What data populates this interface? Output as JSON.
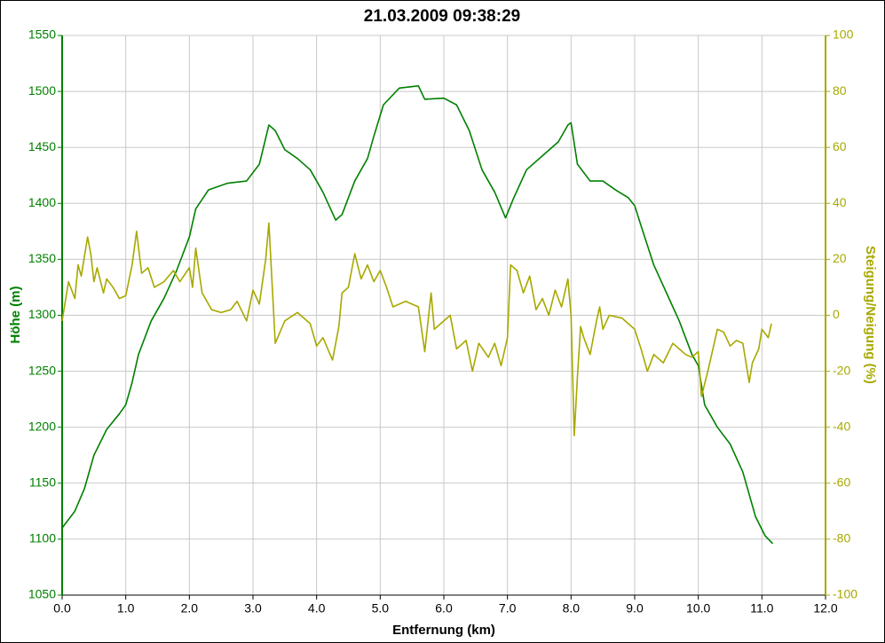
{
  "chart_data": {
    "type": "line",
    "title": "21.03.2009 09:38:29",
    "xlabel": "Entfernung (km)",
    "ylabel": "Höhe (m)",
    "y2label": "Steigung/Neigung (%)",
    "grid": true,
    "xlim": [
      0,
      12
    ],
    "xticks": [
      {
        "value": 0,
        "label": "0.0"
      },
      {
        "value": 1,
        "label": "1.0"
      },
      {
        "value": 2,
        "label": "2.0"
      },
      {
        "value": 3,
        "label": "3.0"
      },
      {
        "value": 4,
        "label": "4.0"
      },
      {
        "value": 5,
        "label": "5.0"
      },
      {
        "value": 6,
        "label": "6.0"
      },
      {
        "value": 7,
        "label": "7.0"
      },
      {
        "value": 8,
        "label": "8.0"
      },
      {
        "value": 9,
        "label": "9.0"
      },
      {
        "value": 10,
        "label": "10.0"
      },
      {
        "value": 11,
        "label": "11.0"
      },
      {
        "value": 12,
        "label": "12.0"
      }
    ],
    "ylim": [
      1050,
      1550
    ],
    "yticks": [
      1050,
      1100,
      1150,
      1200,
      1250,
      1300,
      1350,
      1400,
      1450,
      1500,
      1550
    ],
    "y2lim": [
      -100,
      100
    ],
    "y2ticks": [
      -100,
      -80,
      -60,
      -40,
      -20,
      0,
      20,
      40,
      60,
      80,
      100
    ],
    "series": [
      {
        "color": "#008000",
        "axis": "y",
        "x": [
          0,
          0.2,
          0.35,
          0.5,
          0.7,
          0.9,
          1.0,
          1.1,
          1.2,
          1.4,
          1.6,
          1.8,
          2.0,
          2.1,
          2.3,
          2.6,
          2.9,
          3.1,
          3.25,
          3.35,
          3.5,
          3.7,
          3.9,
          4.1,
          4.3,
          4.4,
          4.6,
          4.8,
          4.9,
          5.05,
          5.3,
          5.6,
          5.7,
          6.0,
          6.2,
          6.4,
          6.6,
          6.8,
          6.97,
          7.1,
          7.3,
          7.6,
          7.8,
          7.95,
          8.0,
          8.1,
          8.3,
          8.5,
          8.7,
          8.9,
          9.0,
          9.1,
          9.3,
          9.5,
          9.7,
          9.9,
          10.0,
          10.1,
          10.3,
          10.5,
          10.7,
          10.9,
          11.05,
          11.17
        ],
        "values": [
          1110,
          1125,
          1145,
          1175,
          1198,
          1212,
          1220,
          1240,
          1265,
          1295,
          1315,
          1340,
          1370,
          1395,
          1412,
          1418,
          1420,
          1435,
          1470,
          1465,
          1448,
          1440,
          1430,
          1410,
          1385,
          1390,
          1420,
          1440,
          1460,
          1488,
          1503,
          1505,
          1493,
          1494,
          1488,
          1465,
          1430,
          1410,
          1387,
          1405,
          1430,
          1445,
          1455,
          1470,
          1472,
          1435,
          1420,
          1420,
          1412,
          1405,
          1398,
          1380,
          1345,
          1320,
          1295,
          1265,
          1255,
          1220,
          1200,
          1185,
          1160,
          1120,
          1103,
          1096
        ]
      },
      {
        "color": "#a8a800",
        "axis": "y2",
        "x": [
          0,
          0.1,
          0.2,
          0.25,
          0.3,
          0.4,
          0.45,
          0.5,
          0.55,
          0.65,
          0.7,
          0.8,
          0.9,
          1.0,
          1.1,
          1.17,
          1.25,
          1.35,
          1.45,
          1.6,
          1.75,
          1.85,
          2.0,
          2.05,
          2.1,
          2.2,
          2.35,
          2.5,
          2.65,
          2.75,
          2.9,
          3.0,
          3.1,
          3.2,
          3.25,
          3.35,
          3.5,
          3.7,
          3.9,
          4.0,
          4.1,
          4.25,
          4.35,
          4.4,
          4.5,
          4.6,
          4.7,
          4.8,
          4.9,
          5.0,
          5.1,
          5.2,
          5.4,
          5.6,
          5.7,
          5.8,
          5.85,
          5.9,
          6.1,
          6.2,
          6.35,
          6.45,
          6.55,
          6.7,
          6.8,
          6.9,
          7.0,
          7.05,
          7.15,
          7.25,
          7.35,
          7.45,
          7.55,
          7.65,
          7.75,
          7.85,
          7.95,
          8.0,
          8.05,
          8.1,
          8.15,
          8.2,
          8.3,
          8.4,
          8.45,
          8.5,
          8.6,
          8.8,
          9.0,
          9.1,
          9.2,
          9.3,
          9.45,
          9.6,
          9.7,
          9.8,
          9.9,
          10.0,
          10.05,
          10.15,
          10.3,
          10.4,
          10.5,
          10.6,
          10.7,
          10.8,
          10.85,
          10.95,
          11.0,
          11.1,
          11.15
        ],
        "values": [
          -2,
          12,
          6,
          18,
          14,
          28,
          22,
          12,
          17,
          8,
          13,
          10,
          6,
          7,
          18,
          30,
          15,
          17,
          10,
          12,
          16,
          12,
          17,
          10,
          24,
          8,
          2,
          1,
          2,
          5,
          -2,
          9,
          4,
          20,
          33,
          -10,
          -2,
          1,
          -3,
          -11,
          -8,
          -16,
          -4,
          8,
          10,
          22,
          13,
          18,
          12,
          16,
          10,
          3,
          5,
          3,
          -13,
          8,
          -5,
          -4,
          0,
          -12,
          -9,
          -20,
          -10,
          -15,
          -10,
          -18,
          -8,
          18,
          16,
          8,
          14,
          2,
          6,
          0,
          9,
          3,
          13,
          0,
          -43,
          -22,
          -4,
          -8,
          -14,
          -2,
          3,
          -5,
          0,
          -1,
          -5,
          -12,
          -20,
          -14,
          -17,
          -10,
          -12,
          -14,
          -15,
          -13,
          -29,
          -20,
          -5,
          -6,
          -11,
          -9,
          -10,
          -24,
          -17,
          -12,
          -5,
          -8,
          -3
        ]
      }
    ]
  }
}
